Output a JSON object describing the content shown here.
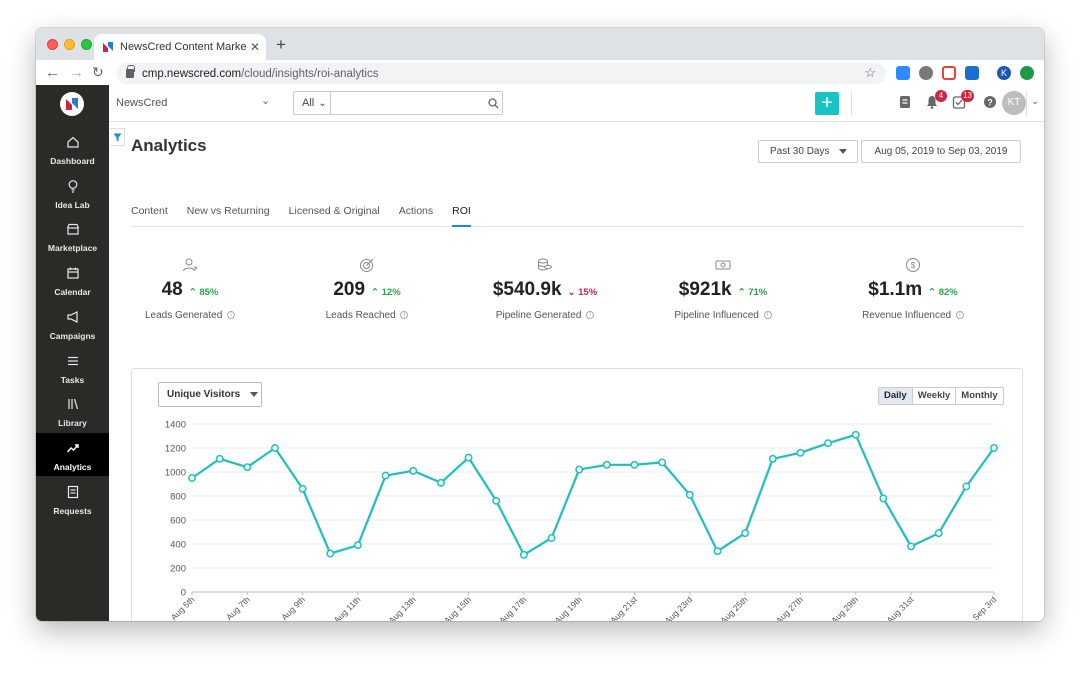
{
  "browser": {
    "tab_title": "NewsCred Content Marketing P",
    "tab_close": "✕",
    "new_tab": "+",
    "url_host": "cmp.newscred.com",
    "url_path": "/cloud/insights/roi-analytics",
    "profile_initial": "K"
  },
  "sidebar": {
    "items": [
      {
        "label": "Dashboard",
        "icon": "home-icon"
      },
      {
        "label": "Idea Lab",
        "icon": "lightbulb-icon"
      },
      {
        "label": "Marketplace",
        "icon": "store-icon"
      },
      {
        "label": "Calendar",
        "icon": "calendar-icon"
      },
      {
        "label": "Campaigns",
        "icon": "megaphone-icon"
      },
      {
        "label": "Tasks",
        "icon": "list-icon"
      },
      {
        "label": "Library",
        "icon": "library-icon"
      },
      {
        "label": "Analytics",
        "icon": "trend-icon",
        "active": true
      },
      {
        "label": "Requests",
        "icon": "document-icon"
      }
    ]
  },
  "header": {
    "org": "NewsCred",
    "search_scope": "All",
    "search_placeholder": "",
    "notifications_count": "4",
    "tasks_count": "13",
    "avatar_initials": "KT"
  },
  "page": {
    "title": "Analytics",
    "range_label": "Past 30 Days",
    "date_range": "Aug 05, 2019 to Sep 03, 2019",
    "tabs": [
      "Content",
      "New vs Returning",
      "Licensed & Original",
      "Actions",
      "ROI"
    ],
    "active_tab": "ROI"
  },
  "kpis": [
    {
      "value": "48",
      "change": "85%",
      "direction": "up",
      "label": "Leads Generated",
      "icon": "user-plus-icon"
    },
    {
      "value": "209",
      "change": "12%",
      "direction": "up",
      "label": "Leads Reached",
      "icon": "target-icon"
    },
    {
      "value": "$540.9k",
      "change": "15%",
      "direction": "down",
      "label": "Pipeline Generated",
      "icon": "coins-icon"
    },
    {
      "value": "$921k",
      "change": "71%",
      "direction": "up",
      "label": "Pipeline Influenced",
      "icon": "cash-icon"
    },
    {
      "value": "$1.1m",
      "change": "82%",
      "direction": "up",
      "label": "Revenue Influenced",
      "icon": "dollar-circle-icon"
    }
  ],
  "chart_controls": {
    "metric": "Unique Visitors",
    "granularity": [
      "Daily",
      "Weekly",
      "Monthly"
    ],
    "active_granularity": "Daily"
  },
  "colors": {
    "accent": "#17c3c3",
    "line": "#1fbfbf",
    "up": "#2aa648",
    "down": "#d0243b",
    "sidebar": "#2b2a27"
  },
  "chart_data": {
    "type": "line",
    "ylim": [
      0,
      1400
    ],
    "yticks": [
      0,
      200,
      400,
      600,
      800,
      1000,
      1200,
      1400
    ],
    "x": [
      "Aug 5th",
      "Aug 6th",
      "Aug 7th",
      "Aug 8th",
      "Aug 9th",
      "Aug 10th",
      "Aug 11th",
      "Aug 12th",
      "Aug 13th",
      "Aug 14th",
      "Aug 15th",
      "Aug 16th",
      "Aug 17th",
      "Aug 18th",
      "Aug 19th",
      "Aug 20th",
      "Aug 21st",
      "Aug 22nd",
      "Aug 23rd",
      "Aug 24th",
      "Aug 25th",
      "Aug 26th",
      "Aug 27th",
      "Aug 28th",
      "Aug 29th",
      "Aug 30th",
      "Aug 31st",
      "Sep 1st",
      "Sep 2nd",
      "Sep 3rd"
    ],
    "xtick_labels": [
      "Aug 5th",
      "Aug 7th",
      "Aug 9th",
      "Aug 11th",
      "Aug 13th",
      "Aug 15th",
      "Aug 17th",
      "Aug 19th",
      "Aug 21st",
      "Aug 23rd",
      "Aug 25th",
      "Aug 27th",
      "Aug 29th",
      "Aug 31st",
      "Sep 3rd"
    ],
    "series": [
      {
        "values": [
          950,
          1110,
          1040,
          1200,
          860,
          320,
          390,
          970,
          1010,
          910,
          1120,
          760,
          310,
          450,
          1020,
          1060,
          1060,
          1080,
          810,
          340,
          490,
          1110,
          1160,
          1240,
          1310,
          780,
          380,
          490,
          880,
          1200
        ]
      }
    ],
    "grid": true,
    "legend": "none"
  }
}
